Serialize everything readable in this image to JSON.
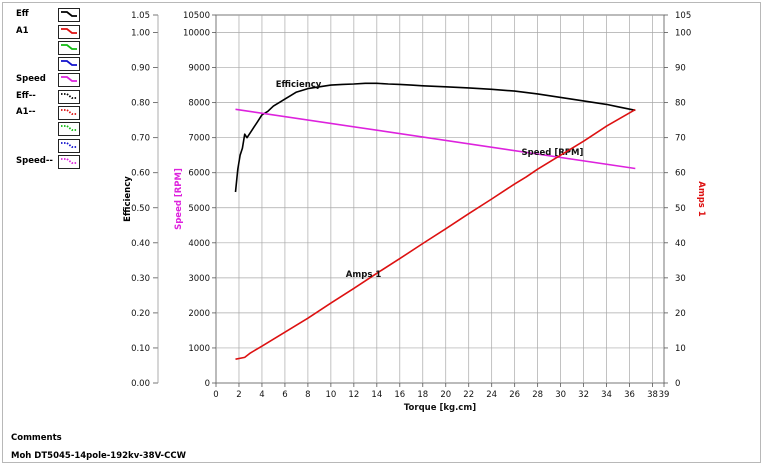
{
  "legend": {
    "items": [
      {
        "label": "Eff",
        "color": "#000000",
        "style": "solid"
      },
      {
        "label": "A1",
        "color": "#dd1111",
        "style": "solid"
      },
      {
        "label": "",
        "color": "#11bb11",
        "style": "solid"
      },
      {
        "label": "",
        "color": "#1111cc",
        "style": "solid"
      },
      {
        "label": "Speed",
        "color": "#dd22dd",
        "style": "solid"
      },
      {
        "label": "Eff--",
        "color": "#000000",
        "style": "dotted"
      },
      {
        "label": "A1--",
        "color": "#dd1111",
        "style": "dotted"
      },
      {
        "label": "",
        "color": "#11bb11",
        "style": "dotted"
      },
      {
        "label": "",
        "color": "#1111cc",
        "style": "dotted"
      },
      {
        "label": "Speed--",
        "color": "#dd22dd",
        "style": "dotted"
      }
    ]
  },
  "comments": {
    "title": "Comments",
    "text": "Moh  DT5045-14pole-192kv-38V-CCW"
  },
  "chart_data": {
    "type": "line",
    "xlabel": "Torque [kg.cm]",
    "xlim": [
      0,
      39
    ],
    "x_ticks": [
      "0",
      "2",
      "4",
      "6",
      "8",
      "10",
      "12",
      "14",
      "16",
      "18",
      "20",
      "22",
      "24",
      "26",
      "28",
      "30",
      "32",
      "34",
      "36",
      "38",
      "39"
    ],
    "grid": true,
    "axes": {
      "efficiency": {
        "label": "Efficiency",
        "color": "#000000",
        "ylim": [
          0,
          1.05
        ],
        "ticks": [
          "0.00",
          "0.10",
          "0.20",
          "0.30",
          "0.40",
          "0.50",
          "0.60",
          "0.70",
          "0.80",
          "0.90",
          "1.00",
          "1.05"
        ]
      },
      "speed": {
        "label": "Speed [RPM]",
        "color": "#dd22dd",
        "ylim": [
          0,
          10500
        ],
        "ticks": [
          "0",
          "1000",
          "2000",
          "3000",
          "4000",
          "5000",
          "6000",
          "7000",
          "8000",
          "9000",
          "10000",
          "10500"
        ]
      },
      "amps": {
        "label": "Amps 1",
        "color": "#dd1111",
        "ylim": [
          0,
          105
        ],
        "ticks": [
          "0",
          "10",
          "20",
          "30",
          "40",
          "50",
          "60",
          "70",
          "80",
          "90",
          "100",
          "105"
        ]
      }
    },
    "series": [
      {
        "name": "Efficiency",
        "axis": "efficiency",
        "color": "#000000",
        "annotation": "Efficiency",
        "annotation_at": [
          5.2,
          0.845
        ],
        "x": [
          1.7,
          1.9,
          2.1,
          2.3,
          2.5,
          2.7,
          3.0,
          3.3,
          3.6,
          4.0,
          4.5,
          5.0,
          5.5,
          6.0,
          6.5,
          7.0,
          7.5,
          8.0,
          9.0,
          10.0,
          11.0,
          12.0,
          13.0,
          14.0,
          15.0,
          16.0,
          17.0,
          18.0,
          20.0,
          22.0,
          24.0,
          26.0,
          28.0,
          30.0,
          32.0,
          34.0,
          35.0,
          36.5
        ],
        "values": [
          0.545,
          0.61,
          0.65,
          0.67,
          0.71,
          0.7,
          0.715,
          0.73,
          0.745,
          0.765,
          0.775,
          0.79,
          0.8,
          0.81,
          0.82,
          0.83,
          0.835,
          0.84,
          0.845,
          0.85,
          0.852,
          0.853,
          0.855,
          0.855,
          0.853,
          0.852,
          0.85,
          0.848,
          0.845,
          0.842,
          0.838,
          0.833,
          0.825,
          0.815,
          0.805,
          0.795,
          0.788,
          0.778
        ]
      },
      {
        "name": "Speed [RPM]",
        "axis": "speed",
        "color": "#dd22dd",
        "annotation": "Speed [RPM]",
        "annotation_at": [
          26.6,
          6500
        ],
        "x": [
          1.7,
          36.5
        ],
        "values": [
          7810,
          6120
        ]
      },
      {
        "name": "Amps 1",
        "axis": "amps",
        "color": "#dd1111",
        "annotation": "Amps 1",
        "annotation_at": [
          11.3,
          30.2
        ],
        "x": [
          1.7,
          2.5,
          3.0,
          4.0,
          6.0,
          8.0,
          10.0,
          12.0,
          14.0,
          16.0,
          18.0,
          20.0,
          22.0,
          24.0,
          26.0,
          27.0,
          28.0,
          30.0,
          32.0,
          34.0,
          36.5
        ],
        "values": [
          6.8,
          7.3,
          8.6,
          10.5,
          14.5,
          18.5,
          22.8,
          27.0,
          31.3,
          35.5,
          39.8,
          44.0,
          48.3,
          52.5,
          56.8,
          58.8,
          61.0,
          65.0,
          69.0,
          73.3,
          78.0
        ]
      }
    ]
  }
}
